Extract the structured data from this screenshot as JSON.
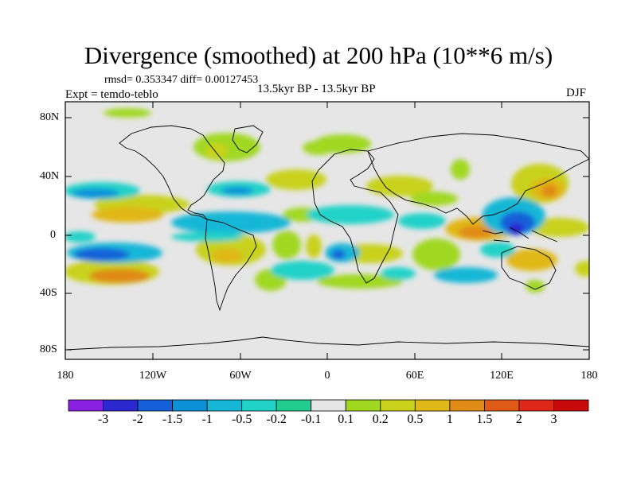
{
  "title": "Divergence (smoothed) at 200 hPa (10**6 m/s)",
  "stats": "rmsd= 0.353347 diff= 0.00127453",
  "experiment": "Expt = temdo-teblo",
  "period": "13.5kyr BP - 13.5kyr BP",
  "season": "DJF",
  "lat_labels": [
    "80N",
    "40N",
    "0",
    "40S",
    "80S"
  ],
  "lon_labels": [
    "180",
    "120W",
    "60W",
    "0",
    "60E",
    "120E",
    "180"
  ],
  "colorbar": {
    "labels": [
      "-3",
      "-2",
      "-1.5",
      "-1",
      "-0.5",
      "-0.2",
      "-0.1",
      "0.1",
      "0.2",
      "0.5",
      "1",
      "1.5",
      "2",
      "3"
    ],
    "colors": [
      "#8a20e0",
      "#2c28d0",
      "#1560d8",
      "#0e90d8",
      "#16b7d6",
      "#20d2c8",
      "#22cc90",
      "#e6e6e6",
      "#a0d820",
      "#c8d21a",
      "#e0b818",
      "#e08a18",
      "#e05a18",
      "#e02818",
      "#c80a0a"
    ]
  },
  "colors": {
    "ocean": "#e6e6e6",
    "coast": "#000000"
  }
}
